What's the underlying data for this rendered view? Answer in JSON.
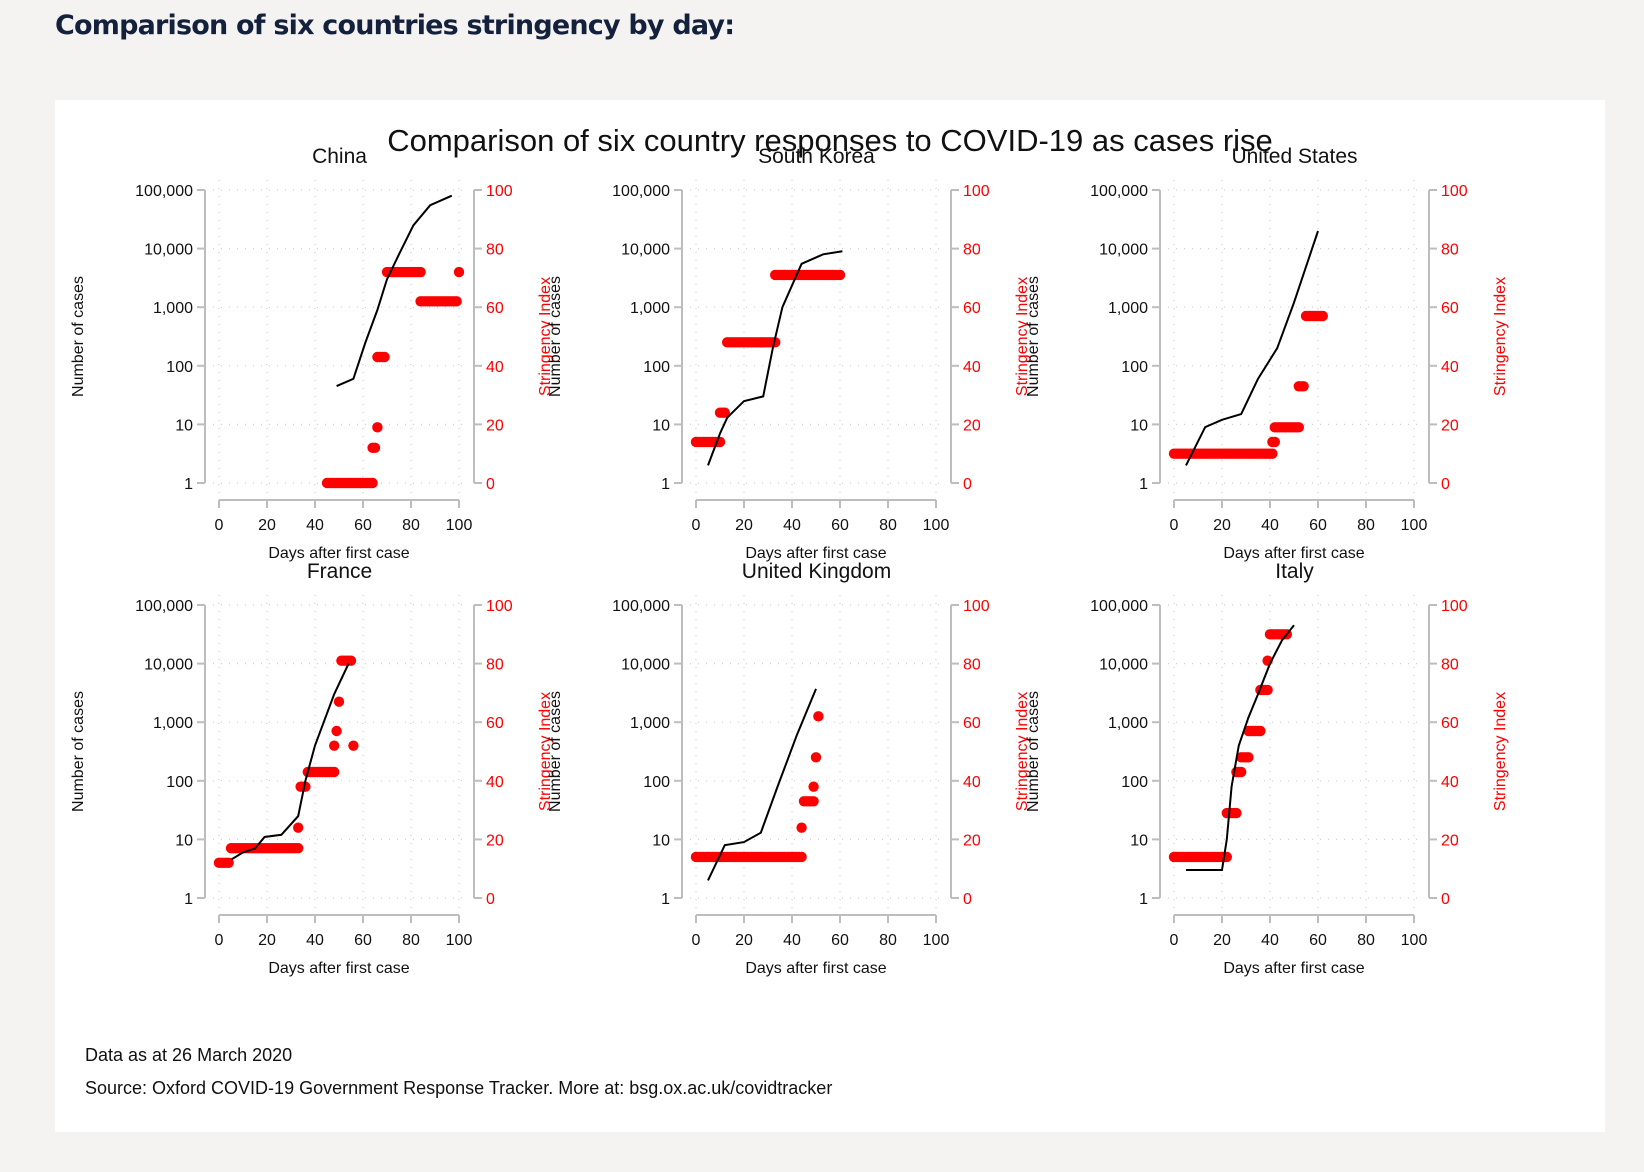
{
  "page": {
    "heading": "Comparison of six countries stringency by day:",
    "footer_date": "Data as at 26 March 2020",
    "footer_source": "Source: Oxford COVID-19 Government Response Tracker. More at: bsg.ox.ac.uk/covidtracker"
  },
  "colors": {
    "cases": "#000000",
    "stringency": "#ff0000",
    "axis": "#bdbdbd",
    "grid": "#cfcfcf"
  },
  "chart_data": {
    "type": "line",
    "title": "Comparison of six country responses to COVID-19 as cases rise",
    "xlabel": "Days after first case",
    "ylabel_left": "Number of cases",
    "ylabel_right": "Stringency Index",
    "x_ticks": [
      "0",
      "20",
      "40",
      "60",
      "80",
      "100"
    ],
    "xlim": [
      0,
      100
    ],
    "y_left_scale": "log",
    "y_left_ticks": [
      "1",
      "10",
      "100",
      "1,000",
      "10,000",
      "100,000"
    ],
    "ylim_left": [
      1,
      100000
    ],
    "y_right_ticks": [
      "0",
      "20",
      "40",
      "60",
      "80",
      "100"
    ],
    "ylim_right": [
      0,
      100
    ],
    "grid": true,
    "panels": [
      {
        "country": "China",
        "cases": {
          "x": [
            49,
            56,
            61,
            66,
            70,
            75,
            81,
            88,
            97
          ],
          "y": [
            45,
            60,
            250,
            900,
            3000,
            8000,
            25000,
            55000,
            80000
          ]
        },
        "stringency": [
          {
            "from": 45,
            "to": 64,
            "value": 0
          },
          {
            "from": 64,
            "to": 65,
            "value": 12
          },
          {
            "from": 66,
            "to": 66,
            "value": 19
          },
          {
            "from": 66,
            "to": 69,
            "value": 43
          },
          {
            "from": 70,
            "to": 84,
            "value": 72
          },
          {
            "from": 84,
            "to": 99,
            "value": 62
          },
          {
            "from": 100,
            "to": 100,
            "value": 72
          }
        ]
      },
      {
        "country": "South Korea",
        "cases": {
          "x": [
            5,
            10,
            13,
            20,
            28,
            32,
            36,
            44,
            53,
            61
          ],
          "y": [
            2,
            7,
            13,
            25,
            30,
            200,
            1000,
            5500,
            8000,
            9000
          ]
        },
        "stringency": [
          {
            "from": 0,
            "to": 10,
            "value": 14
          },
          {
            "from": 10,
            "to": 12,
            "value": 24
          },
          {
            "from": 13,
            "to": 33,
            "value": 48
          },
          {
            "from": 33,
            "to": 60,
            "value": 71
          }
        ]
      },
      {
        "country": "United States",
        "cases": {
          "x": [
            5,
            13,
            20,
            28,
            35,
            43,
            50,
            60
          ],
          "y": [
            2,
            9,
            12,
            15,
            60,
            200,
            1200,
            20000
          ]
        },
        "stringency": [
          {
            "from": 0,
            "to": 41,
            "value": 10
          },
          {
            "from": 41,
            "to": 42,
            "value": 14
          },
          {
            "from": 42,
            "to": 52,
            "value": 19
          },
          {
            "from": 52,
            "to": 54,
            "value": 33
          },
          {
            "from": 55,
            "to": 62,
            "value": 57
          }
        ]
      },
      {
        "country": "France",
        "cases": {
          "x": [
            5,
            10,
            15,
            19,
            26,
            33,
            36,
            40,
            44,
            48,
            54
          ],
          "y": [
            4.5,
            6,
            7,
            11,
            12,
            25,
            100,
            400,
            1100,
            3000,
            10000
          ]
        },
        "stringency": [
          {
            "from": 0,
            "to": 4,
            "value": 12
          },
          {
            "from": 5,
            "to": 33,
            "value": 17
          },
          {
            "from": 33,
            "to": 33,
            "value": 24
          },
          {
            "from": 34,
            "to": 36,
            "value": 38
          },
          {
            "from": 37,
            "to": 48,
            "value": 43
          },
          {
            "from": 48,
            "to": 48,
            "value": 52
          },
          {
            "from": 49,
            "to": 49,
            "value": 57
          },
          {
            "from": 50,
            "to": 50,
            "value": 67
          },
          {
            "from": 51,
            "to": 55,
            "value": 81
          },
          {
            "from": 56,
            "to": 56,
            "value": 52
          }
        ]
      },
      {
        "country": "United Kingdom",
        "cases": {
          "x": [
            5,
            12,
            20,
            27,
            34,
            42,
            50
          ],
          "y": [
            2,
            8,
            9,
            13,
            80,
            600,
            3700
          ]
        },
        "stringency": [
          {
            "from": 0,
            "to": 44,
            "value": 14
          },
          {
            "from": 44,
            "to": 44,
            "value": 24
          },
          {
            "from": 45,
            "to": 49,
            "value": 33
          },
          {
            "from": 49,
            "to": 49,
            "value": 38
          },
          {
            "from": 50,
            "to": 50,
            "value": 48
          },
          {
            "from": 51,
            "to": 51,
            "value": 62
          }
        ]
      },
      {
        "country": "Italy",
        "cases": {
          "x": [
            5,
            20,
            22,
            24,
            27,
            31,
            35,
            40,
            45,
            50
          ],
          "y": [
            3,
            3,
            10,
            80,
            400,
            1200,
            3000,
            10000,
            25000,
            45000
          ]
        },
        "stringency": [
          {
            "from": 0,
            "to": 22,
            "value": 14
          },
          {
            "from": 22,
            "to": 26,
            "value": 29
          },
          {
            "from": 26,
            "to": 28,
            "value": 43
          },
          {
            "from": 28,
            "to": 31,
            "value": 48
          },
          {
            "from": 31,
            "to": 36,
            "value": 57
          },
          {
            "from": 36,
            "to": 39,
            "value": 71
          },
          {
            "from": 39,
            "to": 39,
            "value": 81
          },
          {
            "from": 40,
            "to": 47,
            "value": 90
          }
        ]
      }
    ]
  }
}
